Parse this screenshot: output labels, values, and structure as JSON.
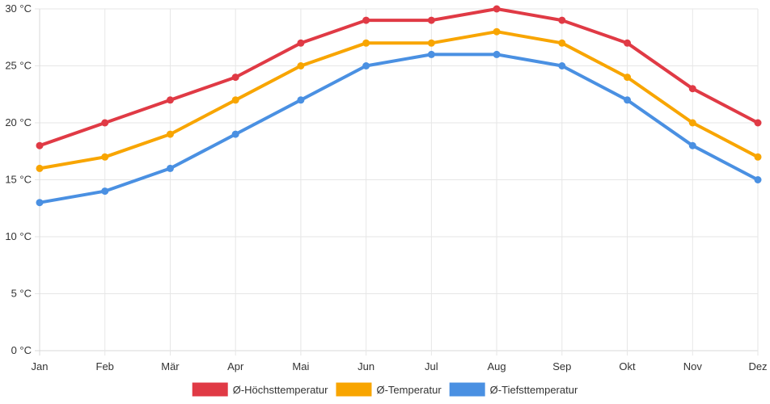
{
  "chart_data": {
    "type": "line",
    "title": "",
    "xlabel": "",
    "ylabel": "",
    "categories": [
      "Jan",
      "Feb",
      "Mär",
      "Apr",
      "Mai",
      "Jun",
      "Jul",
      "Aug",
      "Sep",
      "Okt",
      "Nov",
      "Dez"
    ],
    "ylim": [
      0,
      30
    ],
    "yticks": [
      0,
      5,
      10,
      15,
      20,
      25,
      30
    ],
    "ytick_labels": [
      "0 °C",
      "5 °C",
      "10 °C",
      "15 °C",
      "20 °C",
      "25 °C",
      "30 °C"
    ],
    "grid": true,
    "legend_position": "bottom-center",
    "series": [
      {
        "name": "Ø-Höchsttemperatur",
        "color": "#e03a45",
        "values": [
          18,
          20,
          22,
          24,
          27,
          29,
          29,
          30,
          29,
          27,
          23,
          20
        ]
      },
      {
        "name": "Ø-Temperatur",
        "color": "#f8a500",
        "values": [
          16,
          17,
          19,
          22,
          25,
          27,
          27,
          28,
          27,
          24,
          20,
          17
        ]
      },
      {
        "name": "Ø-Tiefsttemperatur",
        "color": "#4a90e2",
        "values": [
          13,
          14,
          16,
          19,
          22,
          25,
          26,
          26,
          25,
          22,
          18,
          15
        ]
      }
    ]
  }
}
